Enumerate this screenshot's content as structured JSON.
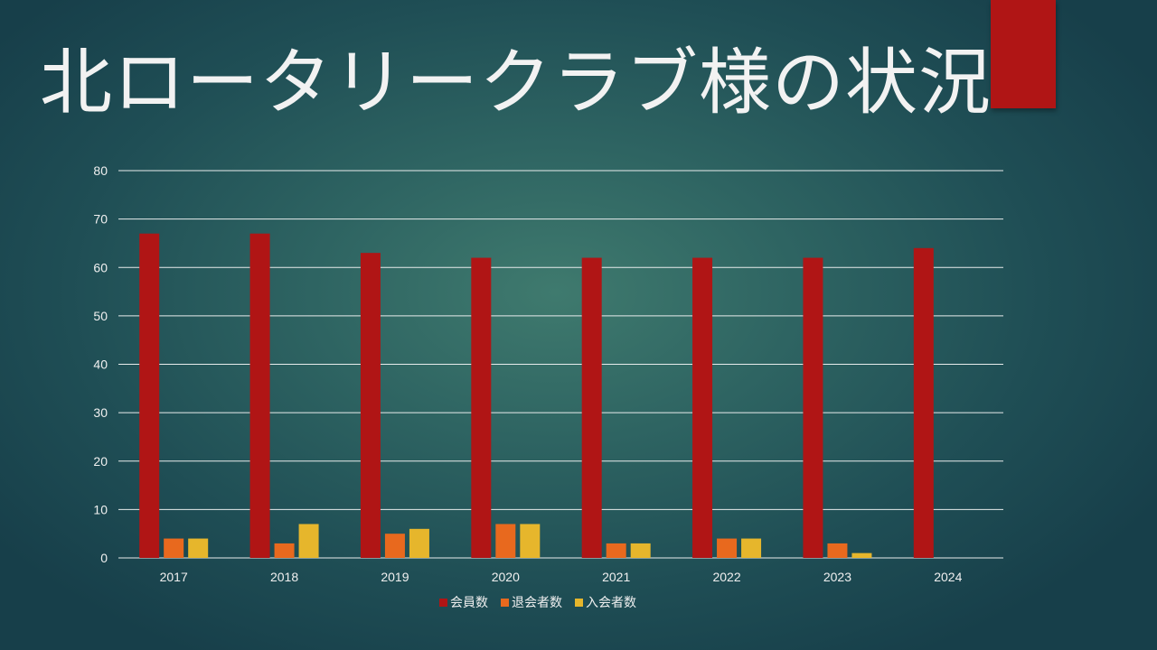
{
  "slide": {
    "title": "北ロータリークラブ様の状況",
    "accent_color": "#b01515"
  },
  "chart_data": {
    "type": "bar",
    "categories": [
      "2017",
      "2018",
      "2019",
      "2020",
      "2021",
      "2022",
      "2023",
      "2024"
    ],
    "series": [
      {
        "name": "会員数",
        "color": "#b01515",
        "values": [
          67,
          67,
          63,
          62,
          62,
          62,
          62,
          64
        ]
      },
      {
        "name": "退会者数",
        "color": "#e8691e",
        "values": [
          4,
          3,
          5,
          7,
          3,
          4,
          3,
          0
        ]
      },
      {
        "name": "入会者数",
        "color": "#e6b62c",
        "values": [
          4,
          7,
          6,
          7,
          3,
          4,
          1,
          0
        ]
      }
    ],
    "ylim": [
      0,
      80
    ],
    "yticks": [
      0,
      10,
      20,
      30,
      40,
      50,
      60,
      70,
      80
    ],
    "grid": true,
    "legend_position": "bottom"
  }
}
